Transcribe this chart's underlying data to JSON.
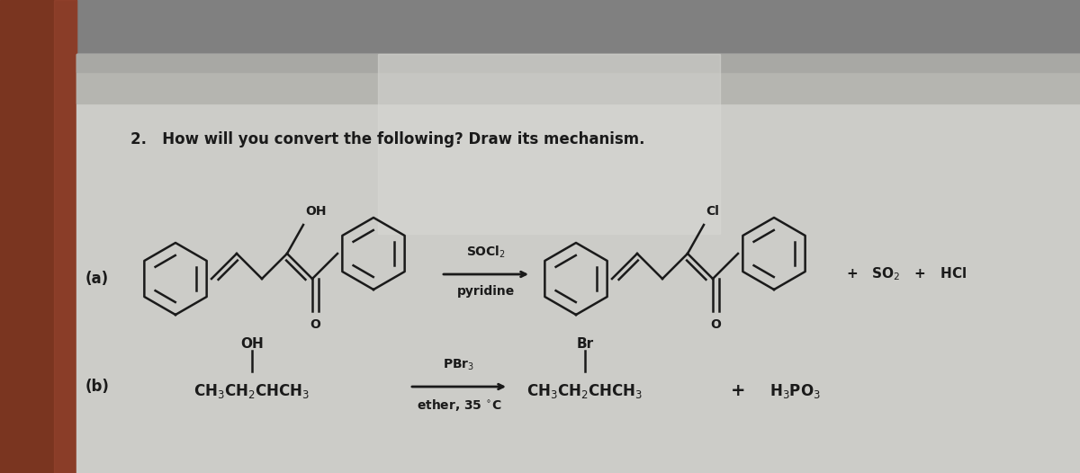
{
  "title": "2.   How will you convert the following? Draw its mechanism.",
  "bg_outer": "#7a7a7a",
  "bg_left_edge": "#8B3A2A",
  "bg_paper": "#d4d4d0",
  "bg_top_shadow": "#b0b0aa",
  "text_color": "#1a1a1a",
  "reaction_a_label": "(a)",
  "reaction_b_label": "(b)",
  "reaction_a_reagent_top": "SOCl$_2$",
  "reaction_a_reagent_bot": "pyridine",
  "reaction_a_byproduct": "+   SO$_2$   +   HCl",
  "reaction_b_reagent_top": "PBr$_3$",
  "reaction_b_reagent_bot": "ether, 35 $^{\\circ}$C",
  "reaction_b_reactant": "CH$_3$CH$_2$CHCH$_3$",
  "reaction_b_reactant_sub": "OH",
  "reaction_b_product": "CH$_3$CH$_2$CHCH$_3$",
  "reaction_b_product_sub": "Br",
  "reaction_b_byproduct": "H$_3$PO$_3$"
}
